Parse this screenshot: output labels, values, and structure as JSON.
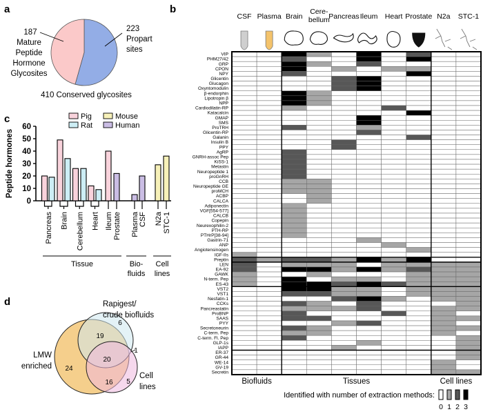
{
  "panels": {
    "a": "a",
    "b": "b",
    "c": "c",
    "d": "d"
  },
  "chart_data": [
    {
      "type": "pie",
      "panel": "a",
      "slices": [
        {
          "label_lines": [
            "187",
            "Mature",
            "Peptide",
            "Hormone",
            "Glycosites"
          ],
          "value": 187,
          "color": "#fbc9c9"
        },
        {
          "label_lines": [
            "223",
            "Propart",
            "sites"
          ],
          "value": 223,
          "color": "#93ade6"
        }
      ],
      "caption": "410 Conserved glycosites"
    },
    {
      "type": "bar",
      "panel": "c",
      "ylabel": "Peptide hormones",
      "ylim": [
        0,
        60
      ],
      "yticks": [
        0,
        10,
        20,
        30,
        40,
        50,
        60
      ],
      "legend": [
        {
          "name": "Pig",
          "color": "#f9d3dc"
        },
        {
          "name": "Mouse",
          "color": "#f7f1b9"
        },
        {
          "name": "Rat",
          "color": "#cdeef5"
        },
        {
          "name": "Human",
          "color": "#cabde4"
        }
      ],
      "categories": [
        "Pancreas",
        "Brain",
        "Cerebellum",
        "Heart",
        "Ileum",
        "Prostate",
        "Plasma",
        "CSF",
        "N2a",
        "STC-1"
      ],
      "bars": [
        {
          "category": "Pancreas",
          "series": "Pig",
          "value": 20
        },
        {
          "category": "Pancreas",
          "series": "Rat",
          "value": 19
        },
        {
          "category": "Brain",
          "series": "Pig",
          "value": 49
        },
        {
          "category": "Brain",
          "series": "Rat",
          "value": 34
        },
        {
          "category": "Cerebellum",
          "series": "Pig",
          "value": 26
        },
        {
          "category": "Cerebellum",
          "series": "Rat",
          "value": 26
        },
        {
          "category": "Heart",
          "series": "Pig",
          "value": 12
        },
        {
          "category": "Heart",
          "series": "Rat",
          "value": 9
        },
        {
          "category": "Ileum",
          "series": "Pig",
          "value": 40
        },
        {
          "category": "Prostate",
          "series": "Human",
          "value": 22
        },
        {
          "category": "Plasma",
          "series": "Human",
          "value": 5
        },
        {
          "category": "CSF",
          "series": "Human",
          "value": 20
        },
        {
          "category": "N2a",
          "series": "Mouse",
          "value": 29
        },
        {
          "category": "STC-1",
          "series": "Mouse",
          "value": 36
        }
      ],
      "groups": [
        {
          "label_lines": [
            "Tissue"
          ],
          "categories": [
            "Pancreas",
            "Brain",
            "Cerebellum",
            "Heart",
            "Ileum",
            "Prostate"
          ]
        },
        {
          "label_lines": [
            "Bio-",
            "fluids"
          ],
          "categories": [
            "Plasma",
            "CSF"
          ]
        },
        {
          "label_lines": [
            "Cell",
            "lines"
          ],
          "categories": [
            "N2a",
            "STC-1"
          ]
        }
      ]
    },
    {
      "type": "heatmap",
      "panel": "b",
      "columns": [
        "CSF",
        "Plasma",
        "Brain",
        "Cere-|bellum",
        "Pancreas",
        "Ileum",
        "Heart",
        "Prostate",
        "N2a",
        "STC-1"
      ],
      "column_groups": [
        "Biofluids",
        "Tissues",
        "Cell lines"
      ],
      "legend_title": "Identified with number of extraction methods:",
      "levels": [
        0,
        1,
        2,
        3
      ],
      "level_colors": [
        "#ffffff",
        "#a6a6a6",
        "#575757",
        "#000000"
      ],
      "rows": [
        {
          "name": "VIP",
          "v": [
            0,
            0,
            3,
            1,
            0,
            3,
            0,
            2,
            0,
            0
          ]
        },
        {
          "name": "PHM27/42",
          "v": [
            0,
            0,
            2,
            0,
            0,
            3,
            0,
            3,
            0,
            0
          ]
        },
        {
          "name": "GRP",
          "v": [
            0,
            0,
            3,
            1,
            0,
            2,
            0,
            0,
            0,
            0
          ]
        },
        {
          "name": "CPON",
          "v": [
            0,
            0,
            3,
            0,
            1,
            0,
            1,
            1,
            0,
            0
          ]
        },
        {
          "name": "NPY",
          "v": [
            0,
            0,
            2,
            0,
            0,
            0,
            0,
            3,
            0,
            0
          ]
        },
        {
          "name": "Glicentin",
          "v": [
            0,
            0,
            0,
            0,
            2,
            3,
            0,
            0,
            0,
            0
          ]
        },
        {
          "name": "Glucagon",
          "v": [
            0,
            0,
            0,
            0,
            2,
            3,
            0,
            0,
            0,
            0
          ]
        },
        {
          "name": "Oxyntomodulin",
          "v": [
            0,
            0,
            0,
            0,
            2,
            3,
            0,
            0,
            0,
            0
          ]
        },
        {
          "name": "β-endorphin",
          "v": [
            0,
            0,
            3,
            1,
            0,
            0,
            0,
            0,
            0,
            0
          ]
        },
        {
          "name": "Lipotropin β",
          "v": [
            0,
            0,
            3,
            1,
            0,
            0,
            0,
            0,
            0,
            0
          ]
        },
        {
          "name": "NPP",
          "v": [
            0,
            0,
            3,
            1,
            0,
            0,
            0,
            0,
            0,
            0
          ]
        },
        {
          "name": "Cardiodilatin-RP",
          "v": [
            0,
            0,
            1,
            0,
            0,
            0,
            2,
            0,
            0,
            0
          ]
        },
        {
          "name": "Katacalcin",
          "v": [
            0,
            0,
            0,
            0,
            0,
            0,
            0,
            3,
            0,
            0
          ]
        },
        {
          "name": "GMAP",
          "v": [
            0,
            0,
            0,
            0,
            0,
            3,
            0,
            0,
            0,
            0
          ]
        },
        {
          "name": "SMS",
          "v": [
            0,
            0,
            0,
            0,
            0,
            3,
            0,
            0,
            0,
            0
          ]
        },
        {
          "name": "ProTRH",
          "v": [
            0,
            0,
            2,
            0,
            0,
            1,
            0,
            0,
            0,
            0
          ]
        },
        {
          "name": "Glicentin-RP",
          "v": [
            0,
            0,
            0,
            0,
            0,
            2,
            0,
            0,
            0,
            0
          ]
        },
        {
          "name": "Galanin",
          "v": [
            0,
            0,
            0,
            0,
            0,
            0,
            0,
            2,
            0,
            0
          ]
        },
        {
          "name": "Insulin B",
          "v": [
            0,
            0,
            0,
            0,
            2,
            0,
            0,
            0,
            0,
            0
          ]
        },
        {
          "name": "PPY",
          "v": [
            0,
            0,
            0,
            0,
            2,
            0,
            0,
            0,
            0,
            0
          ]
        },
        {
          "name": "AgRP",
          "v": [
            0,
            0,
            2,
            0,
            0,
            0,
            0,
            0,
            0,
            0
          ]
        },
        {
          "name": "GNRH-assoc Pep",
          "v": [
            0,
            0,
            2,
            0,
            0,
            0,
            0,
            0,
            0,
            0
          ]
        },
        {
          "name": "KiSS-1",
          "v": [
            0,
            0,
            2,
            0,
            0,
            0,
            0,
            0,
            0,
            0
          ]
        },
        {
          "name": "Metastin",
          "v": [
            0,
            0,
            2,
            0,
            0,
            0,
            0,
            0,
            0,
            0
          ]
        },
        {
          "name": "Neuropeptide 1",
          "v": [
            0,
            0,
            2,
            0,
            0,
            0,
            0,
            0,
            0,
            0
          ]
        },
        {
          "name": "proGnRH",
          "v": [
            0,
            0,
            2,
            0,
            0,
            0,
            0,
            0,
            0,
            0
          ]
        },
        {
          "name": "CCB",
          "v": [
            0,
            0,
            1,
            1,
            0,
            0,
            0,
            0,
            0,
            0
          ]
        },
        {
          "name": "Neuropeptide GE",
          "v": [
            0,
            0,
            1,
            1,
            0,
            0,
            0,
            0,
            0,
            0
          ]
        },
        {
          "name": "proMCH",
          "v": [
            0,
            0,
            1,
            1,
            0,
            0,
            0,
            0,
            0,
            0
          ]
        },
        {
          "name": "ACBP",
          "v": [
            0,
            0,
            0,
            1,
            0,
            0,
            0,
            0,
            0,
            0
          ]
        },
        {
          "name": "CALCA",
          "v": [
            0,
            0,
            0,
            1,
            0,
            0,
            0,
            0,
            0,
            0
          ]
        },
        {
          "name": "Adiponectin",
          "v": [
            0,
            0,
            1,
            0,
            0,
            0,
            0,
            0,
            0,
            0
          ]
        },
        {
          "name": "VGF[554-577]",
          "v": [
            0,
            0,
            1,
            0,
            0,
            0,
            0,
            0,
            0,
            0
          ]
        },
        {
          "name": "CALCB",
          "v": [
            0,
            0,
            1,
            0,
            0,
            0,
            0,
            0,
            0,
            0
          ]
        },
        {
          "name": "Copepin",
          "v": [
            0,
            0,
            1,
            0,
            0,
            0,
            0,
            0,
            0,
            0
          ]
        },
        {
          "name": "Neurexophilin-2",
          "v": [
            0,
            0,
            1,
            0,
            0,
            0,
            0,
            0,
            0,
            0
          ]
        },
        {
          "name": "PTH-RP",
          "v": [
            0,
            0,
            1,
            0,
            0,
            0,
            0,
            0,
            0,
            0
          ]
        },
        {
          "name": "PTHrP[38-94]",
          "v": [
            0,
            0,
            1,
            0,
            0,
            0,
            0,
            0,
            0,
            0
          ]
        },
        {
          "name": "Gastrin-71",
          "v": [
            0,
            0,
            0,
            0,
            0,
            1,
            0,
            0,
            0,
            0
          ]
        },
        {
          "name": "ANP",
          "v": [
            0,
            0,
            0,
            0,
            0,
            0,
            1,
            0,
            0,
            0
          ]
        },
        {
          "name": "Angiotensinogen",
          "v": [
            0,
            0,
            0,
            0,
            0,
            0,
            0,
            1,
            0,
            0
          ]
        },
        {
          "name": "IGF-IIs",
          "v": [
            1,
            0,
            0,
            0,
            0,
            0,
            0,
            0,
            0,
            0
          ]
        },
        {
          "name": "Preptin",
          "v": [
            2,
            1,
            2,
            2,
            1,
            3,
            1,
            3,
            0,
            0
          ]
        },
        {
          "name": "LEN",
          "v": [
            2,
            0,
            1,
            1,
            1,
            0,
            1,
            1,
            1,
            1
          ]
        },
        {
          "name": "EA-92",
          "v": [
            2,
            0,
            3,
            3,
            1,
            3,
            1,
            2,
            1,
            1
          ]
        },
        {
          "name": "GAWK",
          "v": [
            1,
            0,
            0,
            1,
            0,
            0,
            0,
            1,
            1,
            1
          ]
        },
        {
          "name": "N-term. Pep",
          "v": [
            1,
            0,
            3,
            0,
            1,
            1,
            0,
            1,
            1,
            1
          ]
        },
        {
          "name": "ES-43",
          "v": [
            1,
            0,
            3,
            3,
            2,
            3,
            2,
            1,
            1,
            1
          ]
        },
        {
          "name": "VST2",
          "v": [
            0,
            0,
            3,
            3,
            1,
            1,
            0,
            1,
            1,
            1
          ]
        },
        {
          "name": "VST1",
          "v": [
            0,
            0,
            2,
            2,
            1,
            1,
            0,
            1,
            1,
            1
          ]
        },
        {
          "name": "Nesfatin-1",
          "v": [
            0,
            0,
            0,
            0,
            2,
            3,
            1,
            0,
            1,
            1
          ]
        },
        {
          "name": "CCKs",
          "v": [
            0,
            0,
            2,
            1,
            0,
            2,
            0,
            0,
            0,
            1
          ]
        },
        {
          "name": "Pancreastatin",
          "v": [
            0,
            0,
            1,
            1,
            1,
            2,
            0,
            0,
            1,
            1
          ]
        },
        {
          "name": "ProBNP",
          "v": [
            0,
            0,
            2,
            0,
            0,
            0,
            2,
            0,
            1,
            0
          ]
        },
        {
          "name": "SAAS",
          "v": [
            0,
            0,
            2,
            2,
            0,
            0,
            0,
            0,
            1,
            1
          ]
        },
        {
          "name": "PYY",
          "v": [
            0,
            0,
            0,
            0,
            1,
            2,
            0,
            0,
            1,
            0
          ]
        },
        {
          "name": "Secretoneurin",
          "v": [
            0,
            0,
            2,
            1,
            0,
            0,
            0,
            0,
            1,
            1
          ]
        },
        {
          "name": "C-term. Pep",
          "v": [
            0,
            0,
            1,
            1,
            0,
            0,
            0,
            0,
            1,
            0
          ]
        },
        {
          "name": "C-term. Fl. Pep",
          "v": [
            0,
            0,
            2,
            0,
            0,
            0,
            0,
            0,
            0,
            1
          ]
        },
        {
          "name": "GLP-1s",
          "v": [
            0,
            0,
            0,
            0,
            0,
            1,
            0,
            0,
            0,
            1
          ]
        },
        {
          "name": "IAPP",
          "v": [
            0,
            0,
            0,
            0,
            1,
            0,
            0,
            0,
            0,
            1
          ]
        },
        {
          "name": "ER-37",
          "v": [
            0,
            0,
            0,
            0,
            0,
            0,
            0,
            0,
            0,
            1
          ]
        },
        {
          "name": "GR-44",
          "v": [
            0,
            0,
            0,
            0,
            0,
            0,
            0,
            0,
            0,
            1
          ]
        },
        {
          "name": "WE-14",
          "v": [
            0,
            0,
            0,
            0,
            0,
            0,
            0,
            0,
            1,
            0
          ]
        },
        {
          "name": "GV-19",
          "v": [
            0,
            0,
            0,
            0,
            0,
            0,
            0,
            0,
            1,
            0
          ]
        },
        {
          "name": "Secretin",
          "v": [
            0,
            0,
            0,
            0,
            0,
            0,
            0,
            0,
            1,
            1
          ]
        }
      ]
    },
    {
      "type": "venn",
      "panel": "d",
      "sets": [
        {
          "label_lines": [
            "LMW",
            "enriched"
          ],
          "color": "#f5cf8c"
        },
        {
          "label_lines": [
            "Rapigest/",
            "crude biofluids"
          ],
          "color": "#cde8ee"
        },
        {
          "label_lines": [
            "Cell",
            "lines"
          ],
          "color": "#efb8df"
        }
      ],
      "regions": {
        "lmw_only": 24,
        "lmw_rapigest": 19,
        "rapigest_only": 6,
        "all_three": 20,
        "rapigest_cell": 1,
        "lmw_cell": 16,
        "cell_only": 5
      }
    }
  ]
}
